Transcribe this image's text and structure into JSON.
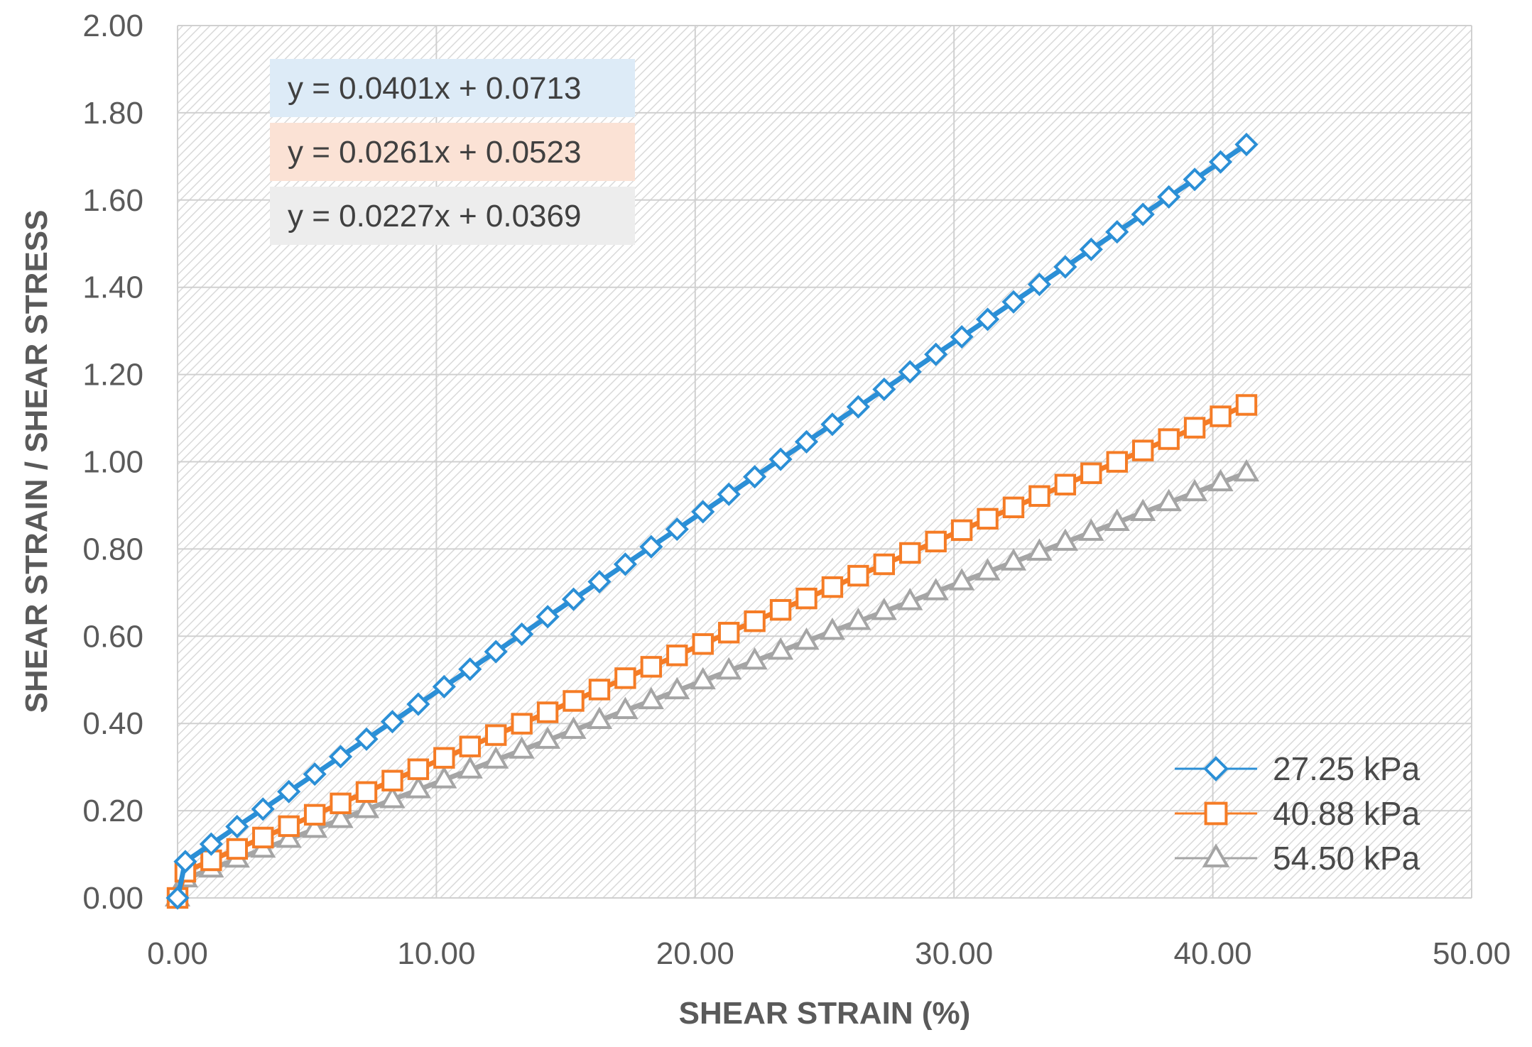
{
  "chart_data": {
    "type": "scatter",
    "title": "",
    "xlabel": "SHEAR STRAIN (%)",
    "ylabel": "SHEAR STRAIN / SHEAR STRESS",
    "xlim": [
      0,
      50
    ],
    "ylim": [
      0,
      2
    ],
    "x_ticks": [
      "0.00",
      "10.00",
      "20.00",
      "30.00",
      "40.00",
      "50.00"
    ],
    "y_ticks": [
      "0.00",
      "0.20",
      "0.40",
      "0.60",
      "0.80",
      "1.00",
      "1.20",
      "1.40",
      "1.60",
      "1.80",
      "2.00"
    ],
    "grid": true,
    "legend_position": "bottom-right",
    "series": [
      {
        "name": "27.25 kPa",
        "color": "#2b8fd6",
        "marker": "diamond",
        "slope": 0.0401,
        "intercept": 0.0713,
        "equation": "y = 0.0401x  + 0.0713",
        "equation_bg": "#ddebf7",
        "first_point": [
          0,
          0
        ],
        "x_start": 0.3,
        "x_end": 42,
        "x_step": 1
      },
      {
        "name": "40.88 kPa",
        "color": "#f57c26",
        "marker": "square",
        "slope": 0.0261,
        "intercept": 0.0523,
        "equation": "y = 0.0261x  + 0.0523",
        "equation_bg": "#fbe2d5",
        "first_point": [
          0,
          0
        ],
        "x_start": 0.3,
        "x_end": 42,
        "x_step": 1
      },
      {
        "name": "54.50 kPa",
        "color": "#a5a5a5",
        "marker": "triangle",
        "slope": 0.0227,
        "intercept": 0.0369,
        "equation": "y = 0.0227x  + 0.0369",
        "equation_bg": "#ededed",
        "first_point": [
          0,
          0
        ],
        "x_start": 0.3,
        "x_end": 42,
        "x_step": 1
      }
    ]
  }
}
